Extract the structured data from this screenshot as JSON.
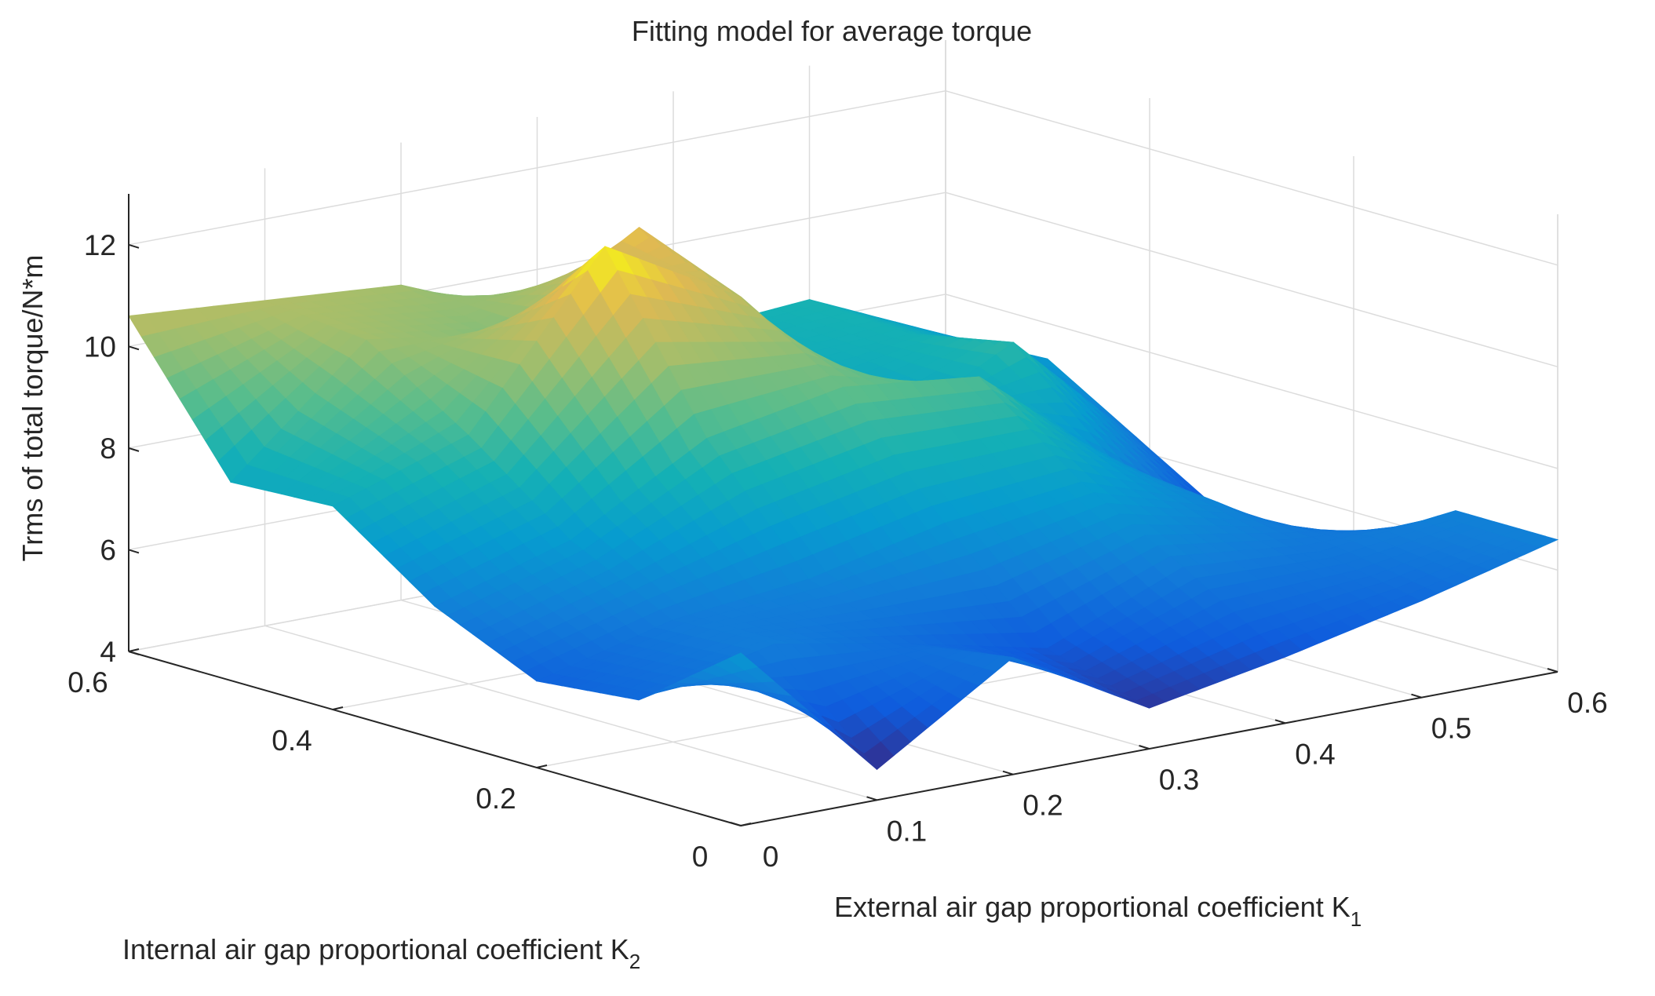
{
  "chart_data": {
    "type": "surface3d",
    "title": "Fitting model for average torque",
    "zlabel": "Trms of total torque/N*m",
    "xlabel": {
      "main": "External air gap proportional coefficient K",
      "sub": "1"
    },
    "ylabel": {
      "main": "Internal air gap proportional coefficient K",
      "sub": "2"
    },
    "xlim": [
      0,
      0.6
    ],
    "ylim": [
      0,
      0.6
    ],
    "zlim": [
      4,
      13
    ],
    "x_ticks": [
      0,
      0.1,
      0.2,
      0.3,
      0.4,
      0.5,
      0.6
    ],
    "x_tick_labels": [
      "0",
      "0.1",
      "0.2",
      "0.3",
      "0.4",
      "0.5",
      "0.6"
    ],
    "y_ticks": [
      0,
      0.2,
      0.4,
      0.6
    ],
    "y_tick_labels": [
      "0",
      "0.2",
      "0.4",
      "0.6"
    ],
    "z_ticks": [
      4,
      6,
      8,
      10,
      12
    ],
    "z_tick_labels": [
      "4",
      "6",
      "8",
      "10",
      "12"
    ],
    "colormap": "parula",
    "grid": true,
    "surface": {
      "x": [
        0,
        0.1,
        0.2,
        0.3,
        0.4,
        0.5,
        0.6
      ],
      "y": [
        0,
        0.1,
        0.2,
        0.3,
        0.4,
        0.5,
        0.6
      ],
      "z": [
        [
          7.4,
          4.6,
          6.3,
          4.8,
          5.3,
          5.9,
          6.6
        ],
        [
          5.9,
          6.5,
          6.0,
          5.4,
          6.5,
          6.3,
          6.6
        ],
        [
          5.7,
          6.4,
          6.7,
          7.3,
          7.6,
          6.7,
          5.1
        ],
        [
          6.6,
          7.4,
          8.9,
          9.4,
          9.1,
          6.9,
          4.9
        ],
        [
          8.0,
          8.9,
          12.1,
          10.6,
          7.3,
          8.7,
          6.1
        ],
        [
          7.9,
          10.2,
          9.8,
          11.4,
          8.1,
          8.3,
          7.3
        ],
        [
          10.6,
          10.4,
          10.2,
          9.1,
          8.2,
          8.4,
          7.2
        ]
      ]
    }
  }
}
